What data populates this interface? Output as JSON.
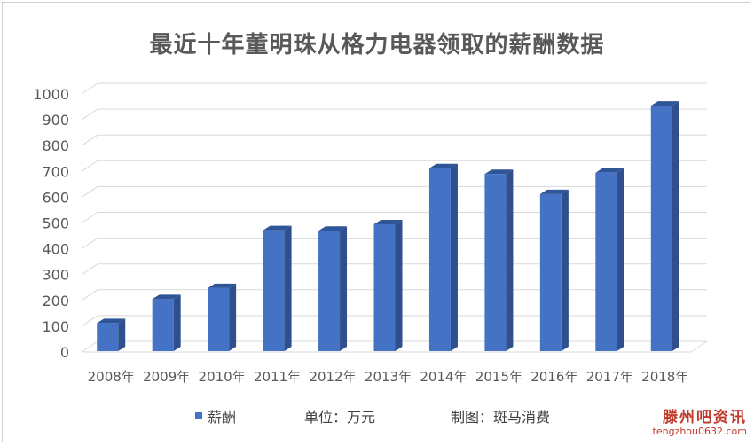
{
  "title": "最近十年董明珠从格力电器领取的薪酬数据",
  "legend": {
    "series_name": "薪酬"
  },
  "notes": {
    "unit": "单位：万元",
    "credit": "制图：斑马消费"
  },
  "watermark": {
    "name": "滕州吧资讯",
    "url": "tengzhou0632.com"
  },
  "colors": {
    "bar_front": "#4472C4",
    "bar_side": "#2F4F8F",
    "bar_top": "#2E5597",
    "grid": "#d9d9d9",
    "text": "#595959"
  },
  "chart_data": {
    "type": "bar",
    "title": "最近十年董明珠从格力电器领取的薪酬数据",
    "categories": [
      "2008年",
      "2009年",
      "2010年",
      "2011年",
      "2012年",
      "2013年",
      "2014年",
      "2015年",
      "2016年",
      "2017年",
      "2018年"
    ],
    "series": [
      {
        "name": "薪酬",
        "values": [
          112,
          205,
          248,
          472,
          470,
          495,
          712,
          690,
          612,
          695,
          955
        ]
      }
    ],
    "ylim": [
      0,
      1000
    ],
    "yticks": [
      0,
      100,
      200,
      300,
      400,
      500,
      600,
      700,
      800,
      900,
      1000
    ],
    "grid": true,
    "legend_position": "bottom-left"
  }
}
